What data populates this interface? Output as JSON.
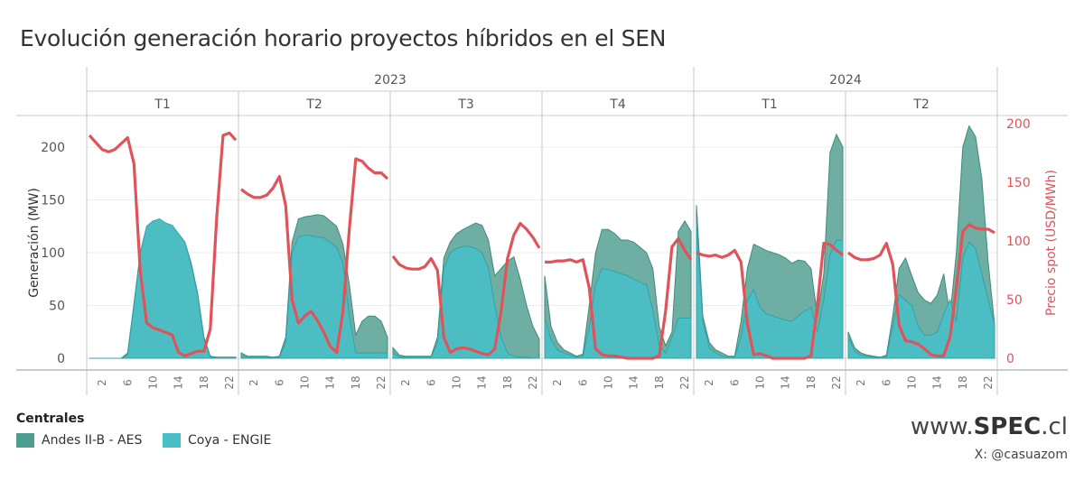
{
  "title": "Evolución generación horario proyectos híbridos en el SEN",
  "legend": {
    "title": "Centrales",
    "items": [
      {
        "label": "Andes II-B - AES",
        "color": "#4f9d8f"
      },
      {
        "label": "Coya - ENGIE",
        "color": "#49bfc8"
      }
    ]
  },
  "branding": {
    "site_prefix": "www.",
    "site_name": "SPEC",
    "site_suffix": ".cl",
    "handle": "X: @casuazom"
  },
  "chart_data": {
    "type": "area",
    "years": [
      {
        "label": "2023",
        "quarters": [
          "T1",
          "T2",
          "T3",
          "T4"
        ]
      },
      {
        "label": "2024",
        "quarters": [
          "T1",
          "T2"
        ]
      }
    ],
    "hours": [
      0,
      1,
      2,
      3,
      4,
      5,
      6,
      7,
      8,
      9,
      10,
      11,
      12,
      13,
      14,
      15,
      16,
      17,
      18,
      19,
      20,
      21,
      22,
      23
    ],
    "x_ticks": [
      2,
      6,
      10,
      14,
      18,
      22
    ],
    "ylabel": "Generación (MW)",
    "ylim": [
      0,
      230
    ],
    "y_ticks": [
      0,
      50,
      100,
      150,
      200
    ],
    "y2label": "Precio spot (USD/MWh)",
    "y2lim": [
      0,
      200
    ],
    "y2_ticks": [
      0,
      50,
      100,
      150,
      200
    ],
    "colors": {
      "andes": "#4f9d8f",
      "coya": "#49bfc8",
      "price": "#e05459"
    },
    "panels": [
      {
        "year": "2023",
        "quarter": "T1",
        "andes": [
          0,
          0,
          0,
          0,
          0,
          0,
          5,
          52,
          100,
          125,
          130,
          130,
          127,
          124,
          118,
          110,
          90,
          62,
          20,
          2,
          1,
          1,
          1,
          1
        ],
        "coya": [
          0,
          0,
          0,
          0,
          0,
          0,
          3,
          50,
          100,
          125,
          130,
          132,
          128,
          126,
          118,
          110,
          88,
          60,
          18,
          1,
          0,
          0,
          0,
          0
        ],
        "price": [
          190,
          184,
          178,
          176,
          178,
          183,
          188,
          166,
          74,
          30,
          26,
          24,
          22,
          20,
          5,
          2,
          4,
          6,
          6,
          25,
          120,
          190,
          192,
          186
        ]
      },
      {
        "year": "2023",
        "quarter": "T2",
        "andes": [
          5,
          2,
          2,
          2,
          2,
          1,
          2,
          20,
          110,
          132,
          134,
          135,
          136,
          135,
          130,
          125,
          108,
          70,
          22,
          35,
          40,
          40,
          35,
          20
        ],
        "coya": [
          2,
          1,
          1,
          1,
          1,
          0,
          1,
          15,
          100,
          115,
          117,
          116,
          115,
          114,
          110,
          105,
          90,
          40,
          5,
          5,
          5,
          5,
          5,
          5
        ],
        "price": [
          144,
          140,
          137,
          137,
          139,
          145,
          155,
          130,
          50,
          30,
          36,
          40,
          32,
          22,
          10,
          5,
          40,
          110,
          170,
          168,
          162,
          158,
          158,
          153
        ]
      },
      {
        "year": "2023",
        "quarter": "T3",
        "andes": [
          10,
          3,
          2,
          2,
          2,
          2,
          2,
          20,
          95,
          110,
          118,
          122,
          125,
          128,
          126,
          112,
          78,
          85,
          92,
          96,
          75,
          50,
          30,
          18
        ],
        "coya": [
          5,
          1,
          1,
          1,
          1,
          1,
          1,
          15,
          85,
          100,
          104,
          106,
          106,
          104,
          100,
          85,
          50,
          20,
          5,
          2,
          1,
          1,
          0,
          0
        ],
        "price": [
          87,
          80,
          77,
          76,
          76,
          78,
          85,
          75,
          18,
          5,
          8,
          9,
          8,
          6,
          4,
          3,
          8,
          40,
          85,
          105,
          115,
          110,
          103,
          94
        ]
      },
      {
        "year": "2023",
        "quarter": "T4",
        "andes": [
          78,
          30,
          15,
          8,
          5,
          2,
          4,
          50,
          100,
          122,
          122,
          118,
          112,
          112,
          110,
          105,
          100,
          85,
          30,
          12,
          25,
          120,
          130,
          120
        ],
        "coya": [
          38,
          18,
          8,
          5,
          3,
          1,
          2,
          30,
          70,
          85,
          84,
          82,
          80,
          78,
          75,
          72,
          70,
          45,
          12,
          5,
          20,
          38,
          38,
          38
        ],
        "price": [
          82,
          82,
          83,
          83,
          84,
          82,
          84,
          60,
          8,
          3,
          2,
          2,
          1,
          0,
          0,
          0,
          0,
          0,
          2,
          40,
          95,
          102,
          92,
          84
        ]
      },
      {
        "year": "2024",
        "quarter": "T1",
        "andes": [
          145,
          40,
          15,
          8,
          5,
          2,
          2,
          35,
          85,
          108,
          105,
          102,
          100,
          98,
          95,
          90,
          93,
          92,
          85,
          40,
          80,
          195,
          212,
          200
        ],
        "coya": [
          130,
          35,
          10,
          5,
          2,
          1,
          1,
          20,
          55,
          65,
          48,
          42,
          40,
          38,
          36,
          35,
          40,
          45,
          48,
          25,
          55,
          98,
          112,
          112
        ],
        "price": [
          90,
          88,
          87,
          88,
          86,
          88,
          92,
          82,
          30,
          3,
          4,
          2,
          0,
          0,
          0,
          0,
          0,
          0,
          2,
          45,
          98,
          97,
          92,
          88
        ]
      },
      {
        "year": "2024",
        "quarter": "T2",
        "andes": [
          25,
          10,
          5,
          3,
          2,
          1,
          3,
          40,
          85,
          95,
          78,
          62,
          55,
          52,
          60,
          80,
          40,
          100,
          200,
          220,
          210,
          170,
          90,
          32
        ],
        "coya": [
          20,
          7,
          3,
          2,
          1,
          0,
          1,
          30,
          60,
          55,
          50,
          30,
          22,
          22,
          25,
          42,
          55,
          35,
          95,
          110,
          104,
          80,
          55,
          32
        ],
        "price": [
          90,
          86,
          84,
          84,
          85,
          88,
          98,
          80,
          28,
          15,
          14,
          12,
          8,
          3,
          2,
          2,
          18,
          60,
          108,
          114,
          111,
          110,
          110,
          107
        ]
      }
    ]
  }
}
